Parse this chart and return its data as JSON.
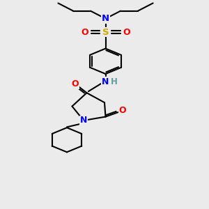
{
  "background_color": "#ebebeb",
  "bg_rgb": [
    0.922,
    0.922,
    0.922
  ],
  "atom_colors": {
    "N": "#0000FF",
    "O": "#FF0000",
    "S": "#CCAA00",
    "C": "#000000",
    "H": "#5F9EA0"
  },
  "lw": 1.5,
  "xlim": [
    0,
    10
  ],
  "ylim": [
    0,
    14
  ]
}
